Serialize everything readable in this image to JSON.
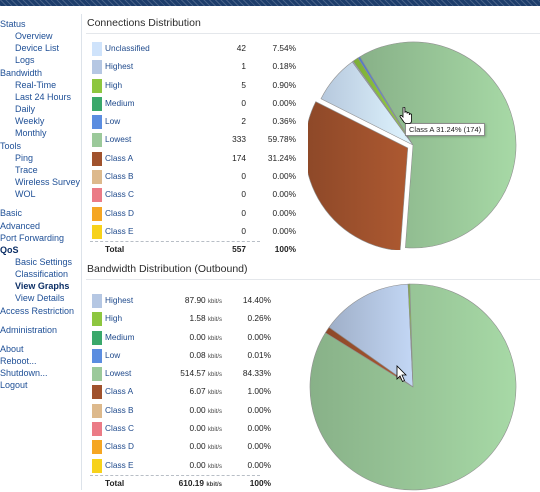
{
  "sidebar": [
    {
      "label": "Status",
      "sub": false
    },
    {
      "label": "Overview",
      "sub": true
    },
    {
      "label": "Device List",
      "sub": true
    },
    {
      "label": "Logs",
      "sub": true
    },
    {
      "label": "Bandwidth",
      "sub": false
    },
    {
      "label": "Real-Time",
      "sub": true
    },
    {
      "label": "Last 24 Hours",
      "sub": true
    },
    {
      "label": "Daily",
      "sub": true
    },
    {
      "label": "Weekly",
      "sub": true
    },
    {
      "label": "Monthly",
      "sub": true
    },
    {
      "label": "Tools",
      "sub": false
    },
    {
      "label": "Ping",
      "sub": true
    },
    {
      "label": "Trace",
      "sub": true
    },
    {
      "label": "Wireless Survey",
      "sub": true
    },
    {
      "label": "WOL",
      "sub": true
    },
    {
      "gap": true
    },
    {
      "label": "Basic",
      "sub": false
    },
    {
      "label": "Advanced",
      "sub": false
    },
    {
      "label": "Port Forwarding",
      "sub": false
    },
    {
      "label": "QoS",
      "sub": false,
      "active": true
    },
    {
      "label": "Basic Settings",
      "sub": true
    },
    {
      "label": "Classification",
      "sub": true
    },
    {
      "label": "View Graphs",
      "sub": true,
      "active": true
    },
    {
      "label": "View Details",
      "sub": true
    },
    {
      "label": "Access Restriction",
      "sub": false
    },
    {
      "gap": true
    },
    {
      "label": "Administration",
      "sub": false
    },
    {
      "gap": true
    },
    {
      "label": "About",
      "sub": false
    },
    {
      "label": "Reboot...",
      "sub": false
    },
    {
      "label": "Shutdown...",
      "sub": false
    },
    {
      "label": "Logout",
      "sub": false
    }
  ],
  "connections": {
    "title": "Connections Distribution",
    "rows": [
      {
        "name": "Unclassified",
        "count": "42",
        "pct": "7.54%",
        "color": "#cfe3fb"
      },
      {
        "name": "Highest",
        "count": "1",
        "pct": "0.18%",
        "color": "#b5c7e3"
      },
      {
        "name": "High",
        "count": "5",
        "pct": "0.90%",
        "color": "#8dc63f"
      },
      {
        "name": "Medium",
        "count": "0",
        "pct": "0.00%",
        "color": "#3aa86b"
      },
      {
        "name": "Low",
        "count": "2",
        "pct": "0.36%",
        "color": "#5b8de0"
      },
      {
        "name": "Lowest",
        "count": "333",
        "pct": "59.78%",
        "color": "#9bc99a"
      },
      {
        "name": "Class A",
        "count": "174",
        "pct": "31.24%",
        "color": "#a0522d"
      },
      {
        "name": "Class B",
        "count": "0",
        "pct": "0.00%",
        "color": "#ddb98c"
      },
      {
        "name": "Class C",
        "count": "0",
        "pct": "0.00%",
        "color": "#eb7b86"
      },
      {
        "name": "Class D",
        "count": "0",
        "pct": "0.00%",
        "color": "#f5a623"
      },
      {
        "name": "Class E",
        "count": "0",
        "pct": "0.00%",
        "color": "#f7d21b"
      }
    ],
    "total": {
      "label": "Total",
      "count": "557",
      "pct": "100%"
    },
    "tooltip": "Class A 31.24% (174)"
  },
  "bandwidth": {
    "title": "Bandwidth Distribution (Outbound)",
    "unit": "kbit/s",
    "rows": [
      {
        "name": "Highest",
        "rate": "87.90",
        "pct": "14.40%",
        "color": "#b5c7e3"
      },
      {
        "name": "High",
        "rate": "1.58",
        "pct": "0.26%",
        "color": "#8dc63f"
      },
      {
        "name": "Medium",
        "rate": "0.00",
        "pct": "0.00%",
        "color": "#3aa86b"
      },
      {
        "name": "Low",
        "rate": "0.08",
        "pct": "0.01%",
        "color": "#5b8de0"
      },
      {
        "name": "Lowest",
        "rate": "514.57",
        "pct": "84.33%",
        "color": "#9bc99a"
      },
      {
        "name": "Class A",
        "rate": "6.07",
        "pct": "1.00%",
        "color": "#a0522d"
      },
      {
        "name": "Class B",
        "rate": "0.00",
        "pct": "0.00%",
        "color": "#ddb98c"
      },
      {
        "name": "Class C",
        "rate": "0.00",
        "pct": "0.00%",
        "color": "#eb7b86"
      },
      {
        "name": "Class D",
        "rate": "0.00",
        "pct": "0.00%",
        "color": "#f5a623"
      },
      {
        "name": "Class E",
        "rate": "0.00",
        "pct": "0.00%",
        "color": "#f7d21b"
      }
    ],
    "total": {
      "label": "Total",
      "rate": "610.19",
      "pct": "100%"
    }
  },
  "chart_data": [
    {
      "type": "pie",
      "categories": [
        "Unclassified",
        "Highest",
        "High",
        "Medium",
        "Low",
        "Lowest",
        "Class A",
        "Class B",
        "Class C",
        "Class D",
        "Class E"
      ],
      "values": [
        42,
        1,
        5,
        0,
        2,
        333,
        174,
        0,
        0,
        0,
        0
      ]
    },
    {
      "type": "pie",
      "categories": [
        "Highest",
        "High",
        "Medium",
        "Low",
        "Lowest",
        "Class A",
        "Class B",
        "Class C",
        "Class D",
        "Class E"
      ],
      "values": [
        87.9,
        1.58,
        0.0,
        0.08,
        514.57,
        6.07,
        0.0,
        0.0,
        0.0,
        0.0
      ]
    }
  ]
}
